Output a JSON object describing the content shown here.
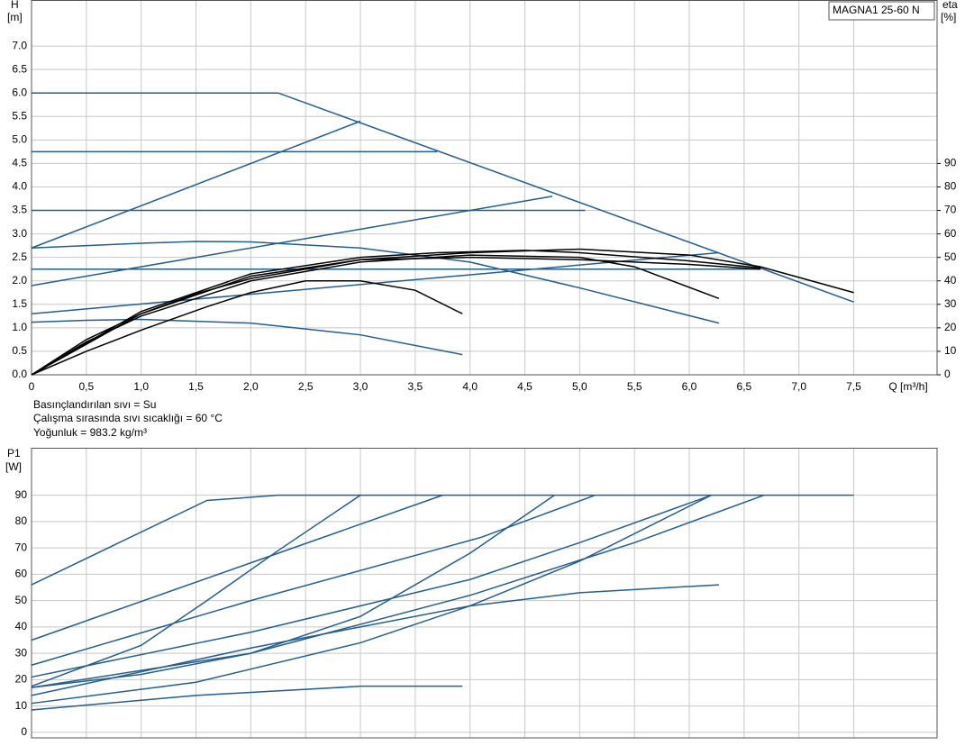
{
  "chart_data": [
    {
      "type": "line",
      "y_label": [
        "H",
        "[m]"
      ],
      "y2_label": [
        "eta",
        "[%]"
      ],
      "x_label": "Q [m³/h]",
      "annotation": "MAGNA1 25-60 N",
      "notes": [
        "Basınçlandırılan sıvı = Su",
        "Çalışma sırasında sıvı sıcaklığı = 60 °C",
        "Yoğunluk = 983.2 kg/m³"
      ],
      "xlim": [
        0,
        8.26
      ],
      "ylim": [
        0,
        7.98
      ],
      "y2lim": [
        0,
        159.6
      ],
      "grid": true,
      "xticks": [
        {
          "value": 0,
          "label": "0"
        },
        {
          "value": 0.5,
          "label": "0,5"
        },
        {
          "value": 1,
          "label": "1,0"
        },
        {
          "value": 1.5,
          "label": "1,5"
        },
        {
          "value": 2,
          "label": "2,0"
        },
        {
          "value": 2.5,
          "label": "2,5"
        },
        {
          "value": 3,
          "label": "3,0"
        },
        {
          "value": 3.5,
          "label": "3,5"
        },
        {
          "value": 4,
          "label": "4,0"
        },
        {
          "value": 4.5,
          "label": "4,5"
        },
        {
          "value": 5,
          "label": "5,0"
        },
        {
          "value": 5.5,
          "label": "5,5"
        },
        {
          "value": 6,
          "label": "6,0"
        },
        {
          "value": 6.5,
          "label": "6,5"
        },
        {
          "value": 7,
          "label": "7,0"
        },
        {
          "value": 7.5,
          "label": "7,5"
        }
      ],
      "yticks": [
        {
          "value": 0,
          "label": "0.0"
        },
        0.5,
        {
          "value": 1,
          "label": "1.0"
        },
        1.5,
        {
          "value": 2,
          "label": "2.0"
        },
        2.5,
        {
          "value": 3,
          "label": "3.0"
        },
        3.5,
        {
          "value": 4,
          "label": "4.0"
        },
        4.5,
        {
          "value": 5,
          "label": "5.0"
        },
        5.5,
        {
          "value": 6,
          "label": "6.0"
        },
        6.5,
        {
          "value": 7,
          "label": "7.0"
        }
      ],
      "y2ticks": [
        0,
        10,
        20,
        30,
        40,
        50,
        60,
        70,
        80,
        90
      ],
      "series": [
        {
          "color": "#245d8f",
          "x": [
            0,
            2.25,
            7.5
          ],
          "values": [
            6.0,
            6.0,
            1.55
          ]
        },
        {
          "color": "#245d8f",
          "x": [
            0,
            3.7
          ],
          "values": [
            4.75,
            4.75
          ]
        },
        {
          "color": "#245d8f",
          "x": [
            0,
            5.05
          ],
          "values": [
            3.5,
            3.5
          ]
        },
        {
          "color": "#245d8f",
          "x": [
            0,
            6.65
          ],
          "values": [
            2.25,
            2.25
          ]
        },
        {
          "color": "#245d8f",
          "x": [
            0,
            3.0
          ],
          "values": [
            2.7,
            5.4
          ]
        },
        {
          "color": "#245d8f",
          "x": [
            0,
            4.75
          ],
          "values": [
            1.9,
            3.8
          ]
        },
        {
          "color": "#245d8f",
          "x": [
            0,
            6.27
          ],
          "values": [
            1.3,
            2.6
          ]
        },
        {
          "color": "#245d8f",
          "x": [
            0,
            1,
            1.5,
            2,
            3,
            4,
            5,
            6.27
          ],
          "values": [
            2.7,
            2.8,
            2.84,
            2.83,
            2.7,
            2.4,
            1.85,
            1.1
          ]
        },
        {
          "color": "#245d8f",
          "x": [
            0,
            0.5,
            1,
            2,
            3,
            3.93
          ],
          "values": [
            1.12,
            1.16,
            1.18,
            1.1,
            0.85,
            0.43
          ]
        },
        {
          "color": "#000000",
          "axis": "y2",
          "x": [
            0,
            0.5,
            1,
            1.5,
            2,
            3,
            4,
            5,
            6,
            6.65,
            7.5
          ],
          "values": [
            0,
            15,
            26,
            34.5,
            41,
            49,
            52,
            53.5,
            51,
            46,
            35
          ]
        },
        {
          "color": "#000000",
          "axis": "y2",
          "x": [
            0,
            0.5,
            1,
            2,
            3,
            4,
            5,
            5.5,
            6.27
          ],
          "values": [
            0,
            14,
            25,
            40,
            48,
            51,
            50,
            46,
            32.5
          ]
        },
        {
          "color": "#000000",
          "axis": "y2",
          "x": [
            0,
            0.5,
            1,
            1.6,
            2,
            2.5,
            3,
            3.5,
            3.93
          ],
          "values": [
            0,
            10,
            19,
            29,
            35,
            40,
            40,
            36,
            26
          ]
        },
        {
          "color": "#000000",
          "axis": "y2",
          "x": [
            0,
            1,
            2,
            3,
            4,
            5,
            6,
            6.65
          ],
          "values": [
            0,
            26,
            42,
            49,
            50,
            49,
            47,
            45
          ]
        },
        {
          "color": "#000000",
          "axis": "y2",
          "x": [
            0,
            1,
            2,
            3,
            3.7,
            4.5,
            5,
            6,
            6.65
          ],
          "values": [
            0,
            27,
            43,
            50,
            52,
            53,
            52,
            48.5,
            45.5
          ]
        }
      ]
    },
    {
      "type": "line",
      "y_label": [
        "P1",
        "[W]"
      ],
      "xlim": [
        0,
        8.26
      ],
      "ylim": [
        -2.1,
        108
      ],
      "grid": true,
      "xticks": [
        0,
        0.5,
        1,
        1.5,
        2,
        2.5,
        3,
        3.5,
        4,
        4.5,
        5,
        5.5,
        6,
        6.5,
        7,
        7.5
      ],
      "yticks": [
        0,
        10,
        20,
        30,
        40,
        50,
        60,
        70,
        80,
        90
      ],
      "series": [
        {
          "color": "#245d8f",
          "x": [
            0,
            1.6,
            2.25,
            7.5
          ],
          "values": [
            56,
            88,
            90,
            90
          ]
        },
        {
          "color": "#245d8f",
          "x": [
            0,
            1,
            1.6,
            2.25,
            3.0
          ],
          "values": [
            17.5,
            33,
            50,
            69,
            90
          ]
        },
        {
          "color": "#245d8f",
          "x": [
            0,
            2.25,
            3.75
          ],
          "values": [
            35,
            68,
            90
          ]
        },
        {
          "color": "#245d8f",
          "x": [
            0,
            2,
            4.1,
            5.14
          ],
          "values": [
            25.5,
            50,
            74,
            90
          ]
        },
        {
          "color": "#245d8f",
          "x": [
            0,
            1,
            2,
            3,
            4,
            4.77
          ],
          "values": [
            17,
            22,
            30,
            44,
            68,
            90
          ]
        },
        {
          "color": "#245d8f",
          "x": [
            0,
            2,
            4,
            5,
            6.2
          ],
          "values": [
            21,
            38,
            58,
            72,
            90
          ]
        },
        {
          "color": "#245d8f",
          "x": [
            0,
            2,
            4,
            5.5,
            6.68
          ],
          "values": [
            17,
            30,
            52,
            72,
            90
          ]
        },
        {
          "color": "#245d8f",
          "x": [
            0,
            1.5,
            3,
            4,
            5,
            6.2
          ],
          "values": [
            11,
            19,
            34,
            48,
            65,
            90
          ]
        },
        {
          "color": "#245d8f",
          "x": [
            0,
            2,
            4,
            5,
            6.27
          ],
          "values": [
            14,
            32,
            48,
            53,
            56
          ]
        },
        {
          "color": "#245d8f",
          "x": [
            0,
            1.5,
            3,
            3.93
          ],
          "values": [
            8.5,
            14,
            17.5,
            17.5
          ]
        }
      ]
    }
  ]
}
